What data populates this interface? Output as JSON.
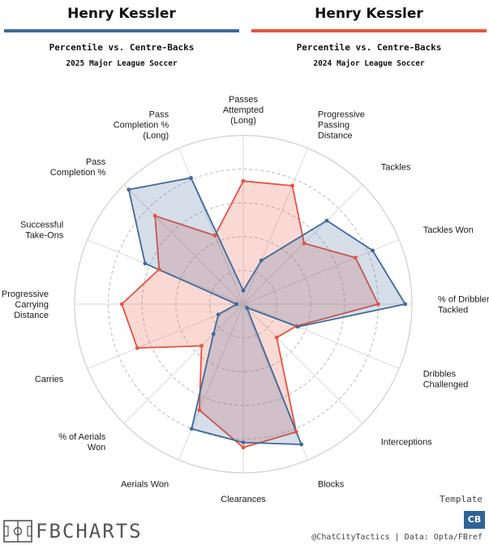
{
  "header": {
    "left": {
      "player": "Henry Kessler",
      "subtitle": "Percentile vs. Centre-Backs",
      "season": "2025 Major League Soccer",
      "color": "#3f6a9b"
    },
    "right": {
      "player": "Henry Kessler",
      "subtitle": "Percentile vs. Centre-Backs",
      "season": "2024 Major League Soccer",
      "color": "#e8523f"
    }
  },
  "footer": {
    "template_label": "Template",
    "position_badge": "CB",
    "logo_text": "FBCHARTS",
    "credits": "@ChatCityTactics | Data: Opta/FBref"
  },
  "colors": {
    "series_2025": "#3f6a9b",
    "series_2024": "#e8523f",
    "grid": "#cfcfcf",
    "badge": "#2f6496"
  },
  "chart_data": {
    "type": "radar",
    "scale": [
      0,
      100
    ],
    "grid_rings": [
      20,
      40,
      60,
      80
    ],
    "ring_style": "dashed",
    "categories": [
      "Passes\nAttempted\n(Long)",
      "Progressive\nPassing\nDistance",
      "Tackles",
      "Tackles Won",
      "% of Dribblers\nTackled",
      "Dribbles\nChallenged",
      "Interceptions",
      "Blocks",
      "Clearances",
      "Aerials Won",
      "% of Aerials\nWon",
      "Carries",
      "Progressive\nCarrying\nDistance",
      "Successful\nTake-Ons",
      "Pass\nCompletion %",
      "Pass\nCompletion %\n(Long)"
    ],
    "series": [
      {
        "name": "2025 Major League Soccer",
        "values": [
          8,
          28,
          70,
          83,
          96,
          35,
          3,
          90,
          82,
          80,
          25,
          16,
          4,
          63,
          96,
          81
        ]
      },
      {
        "name": "2024 Major League Soccer",
        "values": [
          73,
          76,
          51,
          72,
          80,
          34,
          28,
          82,
          85,
          68,
          35,
          68,
          72,
          54,
          74,
          44
        ]
      }
    ]
  }
}
